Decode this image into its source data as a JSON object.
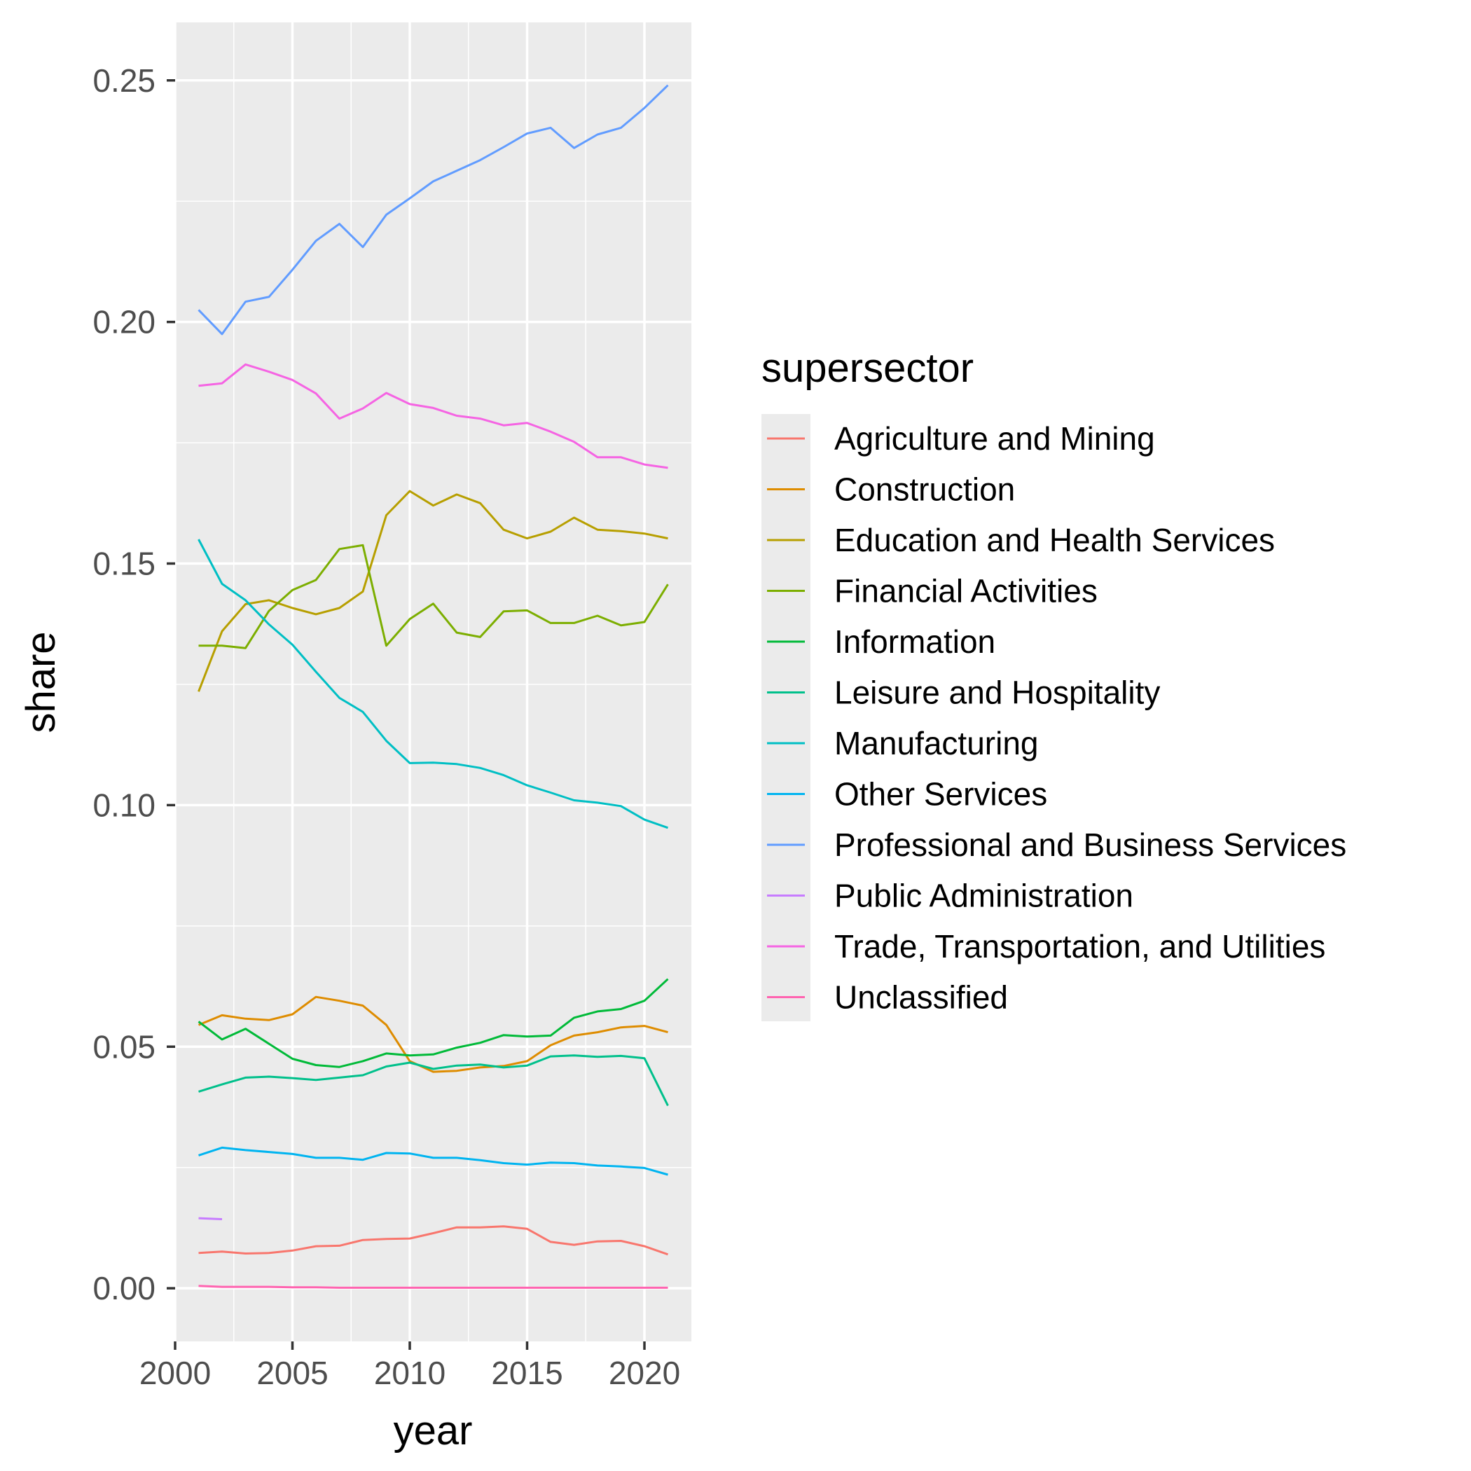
{
  "chart_data": {
    "type": "line",
    "title": "",
    "xlabel": "year",
    "ylabel": "share",
    "xlim": [
      2000,
      2022
    ],
    "ylim": [
      -0.011,
      0.262
    ],
    "x_ticks": [
      2000,
      2005,
      2010,
      2015,
      2020
    ],
    "x_tick_labels": [
      "2000",
      "2005",
      "2010",
      "2015",
      "2020"
    ],
    "x_minor_ticks": [
      2002.5,
      2007.5,
      2012.5,
      2017.5
    ],
    "y_ticks": [
      0.0,
      0.05,
      0.1,
      0.15,
      0.2,
      0.25
    ],
    "y_tick_labels": [
      "0.00",
      "0.05",
      "0.10",
      "0.15",
      "0.20",
      "0.25"
    ],
    "y_minor_ticks": [
      0.025,
      0.075,
      0.125,
      0.175,
      0.225
    ],
    "grid": true,
    "panel_background": "#ebebeb",
    "legend": {
      "title": "supersector",
      "position": "right"
    },
    "series": [
      {
        "name": "Agriculture and Mining",
        "color": "#F8766D",
        "points": [
          [
            2001,
            0.0073
          ],
          [
            2002,
            0.0076
          ],
          [
            2003,
            0.0072
          ],
          [
            2004,
            0.0073
          ],
          [
            2005,
            0.0078
          ],
          [
            2006,
            0.0087
          ],
          [
            2007,
            0.0088
          ],
          [
            2008,
            0.01
          ],
          [
            2009,
            0.0102
          ],
          [
            2010,
            0.0103
          ],
          [
            2011,
            0.0114
          ],
          [
            2012,
            0.0126
          ],
          [
            2013,
            0.0126
          ],
          [
            2014,
            0.0128
          ],
          [
            2015,
            0.0123
          ],
          [
            2016,
            0.0096
          ],
          [
            2017,
            0.009
          ],
          [
            2018,
            0.0097
          ],
          [
            2019,
            0.0098
          ],
          [
            2020,
            0.0087
          ],
          [
            2021,
            0.007
          ]
        ]
      },
      {
        "name": "Construction",
        "color": "#DE8C00",
        "points": [
          [
            2001,
            0.0545
          ],
          [
            2002,
            0.0565
          ],
          [
            2003,
            0.0558
          ],
          [
            2004,
            0.0555
          ],
          [
            2005,
            0.0567
          ],
          [
            2006,
            0.0603
          ],
          [
            2007,
            0.0595
          ],
          [
            2008,
            0.0585
          ],
          [
            2009,
            0.0545
          ],
          [
            2010,
            0.047
          ],
          [
            2011,
            0.0448
          ],
          [
            2012,
            0.045
          ],
          [
            2013,
            0.0457
          ],
          [
            2014,
            0.046
          ],
          [
            2015,
            0.047
          ],
          [
            2016,
            0.0503
          ],
          [
            2017,
            0.0523
          ],
          [
            2018,
            0.053
          ],
          [
            2019,
            0.054
          ],
          [
            2020,
            0.0543
          ],
          [
            2021,
            0.053
          ]
        ]
      },
      {
        "name": "Education and Health Services",
        "color": "#B79F00",
        "points": [
          [
            2001,
            0.1235
          ],
          [
            2002,
            0.136
          ],
          [
            2003,
            0.1416
          ],
          [
            2004,
            0.1424
          ],
          [
            2005,
            0.1408
          ],
          [
            2006,
            0.1395
          ],
          [
            2007,
            0.1408
          ],
          [
            2008,
            0.1442
          ],
          [
            2009,
            0.16
          ],
          [
            2010,
            0.165
          ],
          [
            2011,
            0.162
          ],
          [
            2012,
            0.1643
          ],
          [
            2013,
            0.1625
          ],
          [
            2014,
            0.157
          ],
          [
            2015,
            0.1552
          ],
          [
            2016,
            0.1566
          ],
          [
            2017,
            0.1595
          ],
          [
            2018,
            0.157
          ],
          [
            2019,
            0.1567
          ],
          [
            2020,
            0.1562
          ],
          [
            2021,
            0.1552
          ]
        ]
      },
      {
        "name": "Financial Activities",
        "color": "#7CAE00",
        "points": [
          [
            2001,
            0.133
          ],
          [
            2002,
            0.133
          ],
          [
            2003,
            0.1325
          ],
          [
            2004,
            0.1402
          ],
          [
            2005,
            0.1445
          ],
          [
            2006,
            0.1466
          ],
          [
            2007,
            0.153
          ],
          [
            2008,
            0.1538
          ],
          [
            2009,
            0.133
          ],
          [
            2010,
            0.1385
          ],
          [
            2011,
            0.1417
          ],
          [
            2012,
            0.1357
          ],
          [
            2013,
            0.1348
          ],
          [
            2014,
            0.1401
          ],
          [
            2015,
            0.1403
          ],
          [
            2016,
            0.1377
          ],
          [
            2017,
            0.1377
          ],
          [
            2018,
            0.1392
          ],
          [
            2019,
            0.1372
          ],
          [
            2020,
            0.1379
          ],
          [
            2021,
            0.1457
          ]
        ]
      },
      {
        "name": "Information",
        "color": "#00BA38",
        "points": [
          [
            2001,
            0.0552
          ],
          [
            2002,
            0.0515
          ],
          [
            2003,
            0.0537
          ],
          [
            2004,
            0.0506
          ],
          [
            2005,
            0.0475
          ],
          [
            2006,
            0.0462
          ],
          [
            2007,
            0.0458
          ],
          [
            2008,
            0.047
          ],
          [
            2009,
            0.0486
          ],
          [
            2010,
            0.0482
          ],
          [
            2011,
            0.0484
          ],
          [
            2012,
            0.0498
          ],
          [
            2013,
            0.0508
          ],
          [
            2014,
            0.0524
          ],
          [
            2015,
            0.0521
          ],
          [
            2016,
            0.0523
          ],
          [
            2017,
            0.056
          ],
          [
            2018,
            0.0573
          ],
          [
            2019,
            0.0578
          ],
          [
            2020,
            0.0595
          ],
          [
            2021,
            0.064
          ]
        ]
      },
      {
        "name": "Leisure and Hospitality",
        "color": "#00C08B",
        "points": [
          [
            2001,
            0.0407
          ],
          [
            2002,
            0.0422
          ],
          [
            2003,
            0.0436
          ],
          [
            2004,
            0.0438
          ],
          [
            2005,
            0.0435
          ],
          [
            2006,
            0.0431
          ],
          [
            2007,
            0.0436
          ],
          [
            2008,
            0.0441
          ],
          [
            2009,
            0.0459
          ],
          [
            2010,
            0.0467
          ],
          [
            2011,
            0.0454
          ],
          [
            2012,
            0.0461
          ],
          [
            2013,
            0.0463
          ],
          [
            2014,
            0.0457
          ],
          [
            2015,
            0.0461
          ],
          [
            2016,
            0.048
          ],
          [
            2017,
            0.0482
          ],
          [
            2018,
            0.0479
          ],
          [
            2019,
            0.0481
          ],
          [
            2020,
            0.0476
          ],
          [
            2021,
            0.0378
          ]
        ]
      },
      {
        "name": "Manufacturing",
        "color": "#00BFC4",
        "points": [
          [
            2001,
            0.155
          ],
          [
            2002,
            0.1458
          ],
          [
            2003,
            0.1424
          ],
          [
            2004,
            0.1374
          ],
          [
            2005,
            0.1332
          ],
          [
            2006,
            0.1276
          ],
          [
            2007,
            0.1222
          ],
          [
            2008,
            0.1193
          ],
          [
            2009,
            0.1133
          ],
          [
            2010,
            0.1087
          ],
          [
            2011,
            0.1088
          ],
          [
            2012,
            0.1085
          ],
          [
            2013,
            0.1077
          ],
          [
            2014,
            0.1062
          ],
          [
            2015,
            0.1041
          ],
          [
            2016,
            0.1026
          ],
          [
            2017,
            0.101
          ],
          [
            2018,
            0.1005
          ],
          [
            2019,
            0.0998
          ],
          [
            2020,
            0.097
          ],
          [
            2021,
            0.0953
          ]
        ]
      },
      {
        "name": "Other Services",
        "color": "#00B4F0",
        "points": [
          [
            2001,
            0.0275
          ],
          [
            2002,
            0.0291
          ],
          [
            2003,
            0.0286
          ],
          [
            2004,
            0.0282
          ],
          [
            2005,
            0.0278
          ],
          [
            2006,
            0.027
          ],
          [
            2007,
            0.027
          ],
          [
            2008,
            0.0266
          ],
          [
            2009,
            0.028
          ],
          [
            2010,
            0.0279
          ],
          [
            2011,
            0.027
          ],
          [
            2012,
            0.027
          ],
          [
            2013,
            0.0265
          ],
          [
            2014,
            0.0259
          ],
          [
            2015,
            0.0256
          ],
          [
            2016,
            0.026
          ],
          [
            2017,
            0.0259
          ],
          [
            2018,
            0.0254
          ],
          [
            2019,
            0.0252
          ],
          [
            2020,
            0.0249
          ],
          [
            2021,
            0.0235
          ]
        ]
      },
      {
        "name": "Professional and Business Services",
        "color": "#619CFF",
        "points": [
          [
            2001,
            0.2025
          ],
          [
            2002,
            0.1975
          ],
          [
            2003,
            0.2042
          ],
          [
            2004,
            0.2052
          ],
          [
            2005,
            0.2108
          ],
          [
            2006,
            0.2168
          ],
          [
            2007,
            0.2203
          ],
          [
            2008,
            0.2155
          ],
          [
            2009,
            0.2222
          ],
          [
            2010,
            0.2256
          ],
          [
            2011,
            0.2291
          ],
          [
            2012,
            0.2313
          ],
          [
            2013,
            0.2335
          ],
          [
            2014,
            0.2362
          ],
          [
            2015,
            0.239
          ],
          [
            2016,
            0.2402
          ],
          [
            2017,
            0.236
          ],
          [
            2018,
            0.2388
          ],
          [
            2019,
            0.2402
          ],
          [
            2020,
            0.2443
          ],
          [
            2021,
            0.249
          ]
        ]
      },
      {
        "name": "Public Administration",
        "color": "#C77CFF",
        "points": [
          [
            2001,
            0.0145
          ],
          [
            2002,
            0.0143
          ]
        ]
      },
      {
        "name": "Trade, Transportation, and Utilities",
        "color": "#F564E3",
        "points": [
          [
            2001,
            0.1868
          ],
          [
            2002,
            0.1873
          ],
          [
            2003,
            0.1912
          ],
          [
            2004,
            0.1897
          ],
          [
            2005,
            0.188
          ],
          [
            2006,
            0.1852
          ],
          [
            2007,
            0.18
          ],
          [
            2008,
            0.1821
          ],
          [
            2009,
            0.1853
          ],
          [
            2010,
            0.183
          ],
          [
            2011,
            0.1822
          ],
          [
            2012,
            0.1806
          ],
          [
            2013,
            0.18
          ],
          [
            2014,
            0.1786
          ],
          [
            2015,
            0.1791
          ],
          [
            2016,
            0.1773
          ],
          [
            2017,
            0.1752
          ],
          [
            2018,
            0.172
          ],
          [
            2019,
            0.172
          ],
          [
            2020,
            0.1705
          ],
          [
            2021,
            0.1698
          ]
        ]
      },
      {
        "name": "Unclassified",
        "color": "#FF64B0",
        "points": [
          [
            2001,
            0.0005
          ],
          [
            2002,
            0.0003
          ],
          [
            2003,
            0.0003
          ],
          [
            2004,
            0.0003
          ],
          [
            2005,
            0.0002
          ],
          [
            2006,
            0.0002
          ],
          [
            2007,
            0.0001
          ],
          [
            2008,
            0.0001
          ],
          [
            2009,
            0.0001
          ],
          [
            2010,
            0.0001
          ],
          [
            2011,
            0.0001
          ],
          [
            2012,
            0.0001
          ],
          [
            2013,
            0.0001
          ],
          [
            2014,
            0.0001
          ],
          [
            2015,
            0.0001
          ],
          [
            2016,
            0.0001
          ],
          [
            2017,
            0.0001
          ],
          [
            2018,
            0.0001
          ],
          [
            2019,
            0.0001
          ],
          [
            2020,
            0.0001
          ],
          [
            2021,
            0.0001
          ]
        ]
      }
    ]
  }
}
